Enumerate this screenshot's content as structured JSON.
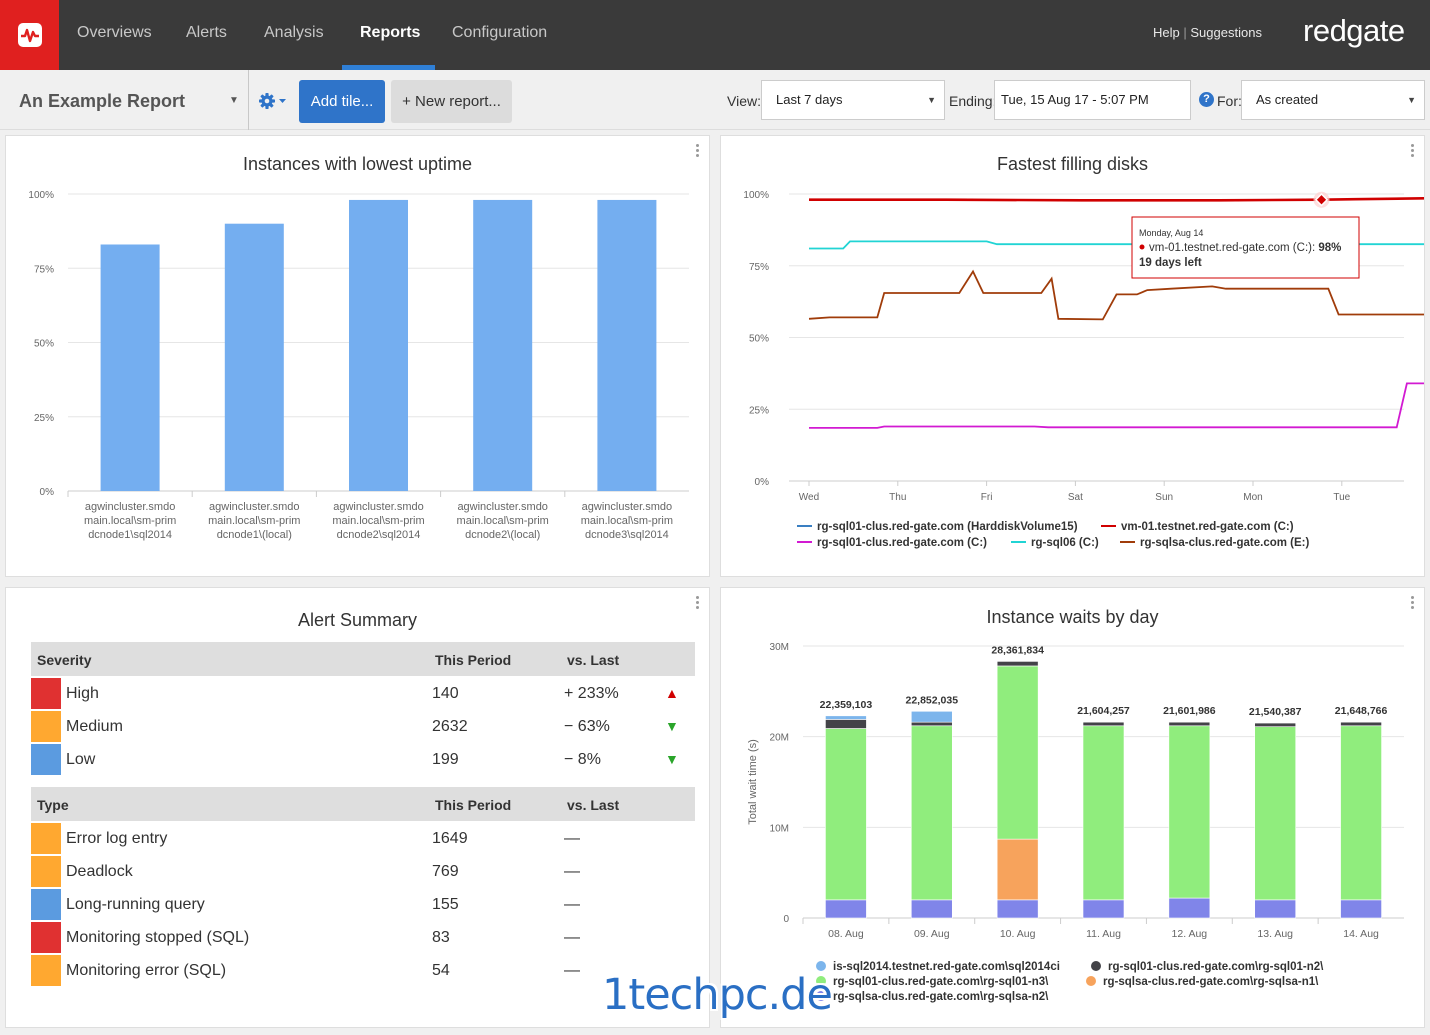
{
  "nav": {
    "tabs": [
      "Overviews",
      "Alerts",
      "Analysis",
      "Reports",
      "Configuration"
    ],
    "help": "Help",
    "separator": "|",
    "suggestions": "Suggestions",
    "brand": "redgate"
  },
  "toolbar": {
    "report_title": "An Example Report",
    "add_tile": "Add tile...",
    "new_report": "+ New report...",
    "view_label": "View:",
    "view_value": "Last 7 days",
    "ending_label": "Ending:",
    "ending_value": "Tue, 15 Aug 17 - 5:07 PM",
    "help_icon": "?",
    "for_label": "For:",
    "for_value": "As created"
  },
  "colors": {
    "accent": "#2f74c9",
    "brand_red": "#e0201f",
    "high": "#e03131",
    "medium": "#ffa830",
    "low": "#5b9be0"
  },
  "charts": [
    {
      "title": "Instances with lowest uptime",
      "chart_data": {
        "type": "bar",
        "categories": [
          [
            "agwincluster.smdo",
            "main.local\\sm-prim",
            "dcnode1\\sql2014"
          ],
          [
            "agwincluster.smdo",
            "main.local\\sm-prim",
            "dcnode1\\(local)"
          ],
          [
            "agwincluster.smdo",
            "main.local\\sm-prim",
            "dcnode2\\sql2014"
          ],
          [
            "agwincluster.smdo",
            "main.local\\sm-prim",
            "dcnode2\\(local)"
          ],
          [
            "agwincluster.smdo",
            "main.local\\sm-prim",
            "dcnode3\\sql2014"
          ]
        ],
        "values": [
          83,
          90,
          98,
          98,
          98
        ],
        "ylim": [
          0,
          100
        ],
        "yticks": [
          "0%",
          "25%",
          "50%",
          "75%",
          "100%"
        ],
        "color": "#74aef0"
      }
    },
    {
      "title": "Fastest filling disks",
      "chart_data": {
        "type": "line",
        "xticks": [
          "Wed",
          "Thu",
          "Fri",
          "Sat",
          "Sun",
          "Mon",
          "Tue"
        ],
        "yticks": [
          "0%",
          "25%",
          "50%",
          "75%",
          "100%"
        ],
        "ylim": [
          0,
          100
        ],
        "series": [
          {
            "name": "rg-sql01-clus.red-gate.com (HarddiskVolume15)",
            "color": "#3a7fc2",
            "values": []
          },
          {
            "name": "vm-01.testnet.red-gate.com (C:)",
            "color": "#d00000",
            "values": [
              [
                0,
                98
              ],
              [
                2,
                98
              ],
              [
                4,
                97.8
              ],
              [
                6,
                97.8
              ],
              [
                7.5,
                98
              ],
              [
                8,
                98.2
              ],
              [
                9,
                98.5
              ]
            ]
          },
          {
            "name": "rg-sql01-clus.red-gate.com (C:)",
            "color": "#d21ad2",
            "values": [
              [
                0,
                18.5
              ],
              [
                1,
                18.5
              ],
              [
                1.1,
                19
              ],
              [
                3.3,
                19
              ],
              [
                3.5,
                18.7
              ],
              [
                8.6,
                18.7
              ],
              [
                8.75,
                34
              ],
              [
                9,
                34
              ]
            ]
          },
          {
            "name": "rg-sql06 (C:)",
            "color": "#21d4d4",
            "values": [
              [
                0,
                81
              ],
              [
                0.5,
                81
              ],
              [
                0.6,
                83.5
              ],
              [
                2.6,
                83.5
              ],
              [
                2.75,
                82.5
              ],
              [
                9,
                82.5
              ]
            ]
          },
          {
            "name": "rg-sqlsa-clus.red-gate.com (E:)",
            "color": "#a03c0a",
            "values": [
              [
                0,
                56.5
              ],
              [
                0.3,
                57
              ],
              [
                1,
                57
              ],
              [
                1.1,
                65.5
              ],
              [
                2.2,
                65.5
              ],
              [
                2.4,
                73
              ],
              [
                2.55,
                65.5
              ],
              [
                3.4,
                65.5
              ],
              [
                3.55,
                70.5
              ],
              [
                3.65,
                56.5
              ],
              [
                4.3,
                56.3
              ],
              [
                4.5,
                65
              ],
              [
                4.8,
                65
              ],
              [
                4.95,
                66.5
              ],
              [
                5.3,
                67
              ],
              [
                5.9,
                67.8
              ],
              [
                6.1,
                67
              ],
              [
                7.6,
                67
              ],
              [
                7.75,
                58
              ],
              [
                9,
                58
              ]
            ]
          }
        ],
        "tooltip": {
          "date": "Monday, Aug 14",
          "series": "vm-01.testnet.red-gate.com (C:): ",
          "value": "98%",
          "note": "19 days left"
        }
      }
    },
    {
      "title": "Instance waits by day",
      "chart_data": {
        "type": "bar",
        "stacked": true,
        "categories": [
          "08. Aug",
          "09. Aug",
          "10. Aug",
          "11. Aug",
          "12. Aug",
          "13. Aug",
          "14. Aug"
        ],
        "totals": [
          "22,359,103",
          "22,852,035",
          "28,361,834",
          "21,604,257",
          "21,601,986",
          "21,540,387",
          "21,648,766"
        ],
        "ylabel": "Total wait time (s)",
        "yticks": [
          "0",
          "10M",
          "20M",
          "30M"
        ],
        "ylim": [
          0,
          30000000
        ],
        "series": [
          {
            "name": "is-sql2014.testnet.red-gate.com\\sql2014ci",
            "color": "#7cb5ec",
            "values": [
              400000,
              1200000,
              0,
              0,
              0,
              0,
              0
            ]
          },
          {
            "name": "rg-sql01-clus.red-gate.com\\rg-sql01-n2\\",
            "color": "#434348",
            "values": [
              1000000,
              400000,
              500000,
              400000,
              400000,
              400000,
              400000
            ]
          },
          {
            "name": "rg-sql01-clus.red-gate.com\\rg-sql01-n3\\",
            "color": "#90ed7d",
            "values": [
              18900000,
              19200000,
              19100000,
              19200000,
              19000000,
              19100000,
              19200000
            ]
          },
          {
            "name": "rg-sqlsa-clus.red-gate.com\\rg-sqlsa-n1\\",
            "color": "#f7a35c",
            "values": [
              0,
              0,
              6700000,
              0,
              0,
              0,
              0
            ]
          },
          {
            "name": "rg-sqlsa-clus.red-gate.com\\rg-sqlsa-n2\\",
            "color": "#8085e9",
            "values": [
              2000000,
              2000000,
              2000000,
              2000000,
              2200000,
              2000000,
              2000000
            ]
          }
        ]
      }
    }
  ],
  "alert_summary": {
    "title": "Alert Summary",
    "severity_header": [
      "Severity",
      "This Period",
      "vs. Last"
    ],
    "severity_rows": [
      {
        "label": "High",
        "count": "140",
        "change": "+ 233%",
        "color": "#e03131",
        "arrow": "▲",
        "arrow_color": "#d00000"
      },
      {
        "label": "Medium",
        "count": "2632",
        "change": "− 63%",
        "color": "#ffa830",
        "arrow": "▼",
        "arrow_color": "#2aa52a"
      },
      {
        "label": "Low",
        "count": "199",
        "change": "− 8%",
        "color": "#5b9be0",
        "arrow": "▼",
        "arrow_color": "#2aa52a"
      }
    ],
    "type_header": [
      "Type",
      "This Period",
      "vs. Last"
    ],
    "type_rows": [
      {
        "label": "Error log entry",
        "count": "1649",
        "change": "—",
        "color": "#ffa830"
      },
      {
        "label": "Deadlock",
        "count": "769",
        "change": "—",
        "color": "#ffa830"
      },
      {
        "label": "Long-running query",
        "count": "155",
        "change": "—",
        "color": "#5b9be0"
      },
      {
        "label": "Monitoring stopped (SQL)",
        "count": "83",
        "change": "—",
        "color": "#e03131"
      },
      {
        "label": "Monitoring error (SQL)",
        "count": "54",
        "change": "—",
        "color": "#ffa830"
      }
    ]
  },
  "watermark": "1techpc.de"
}
